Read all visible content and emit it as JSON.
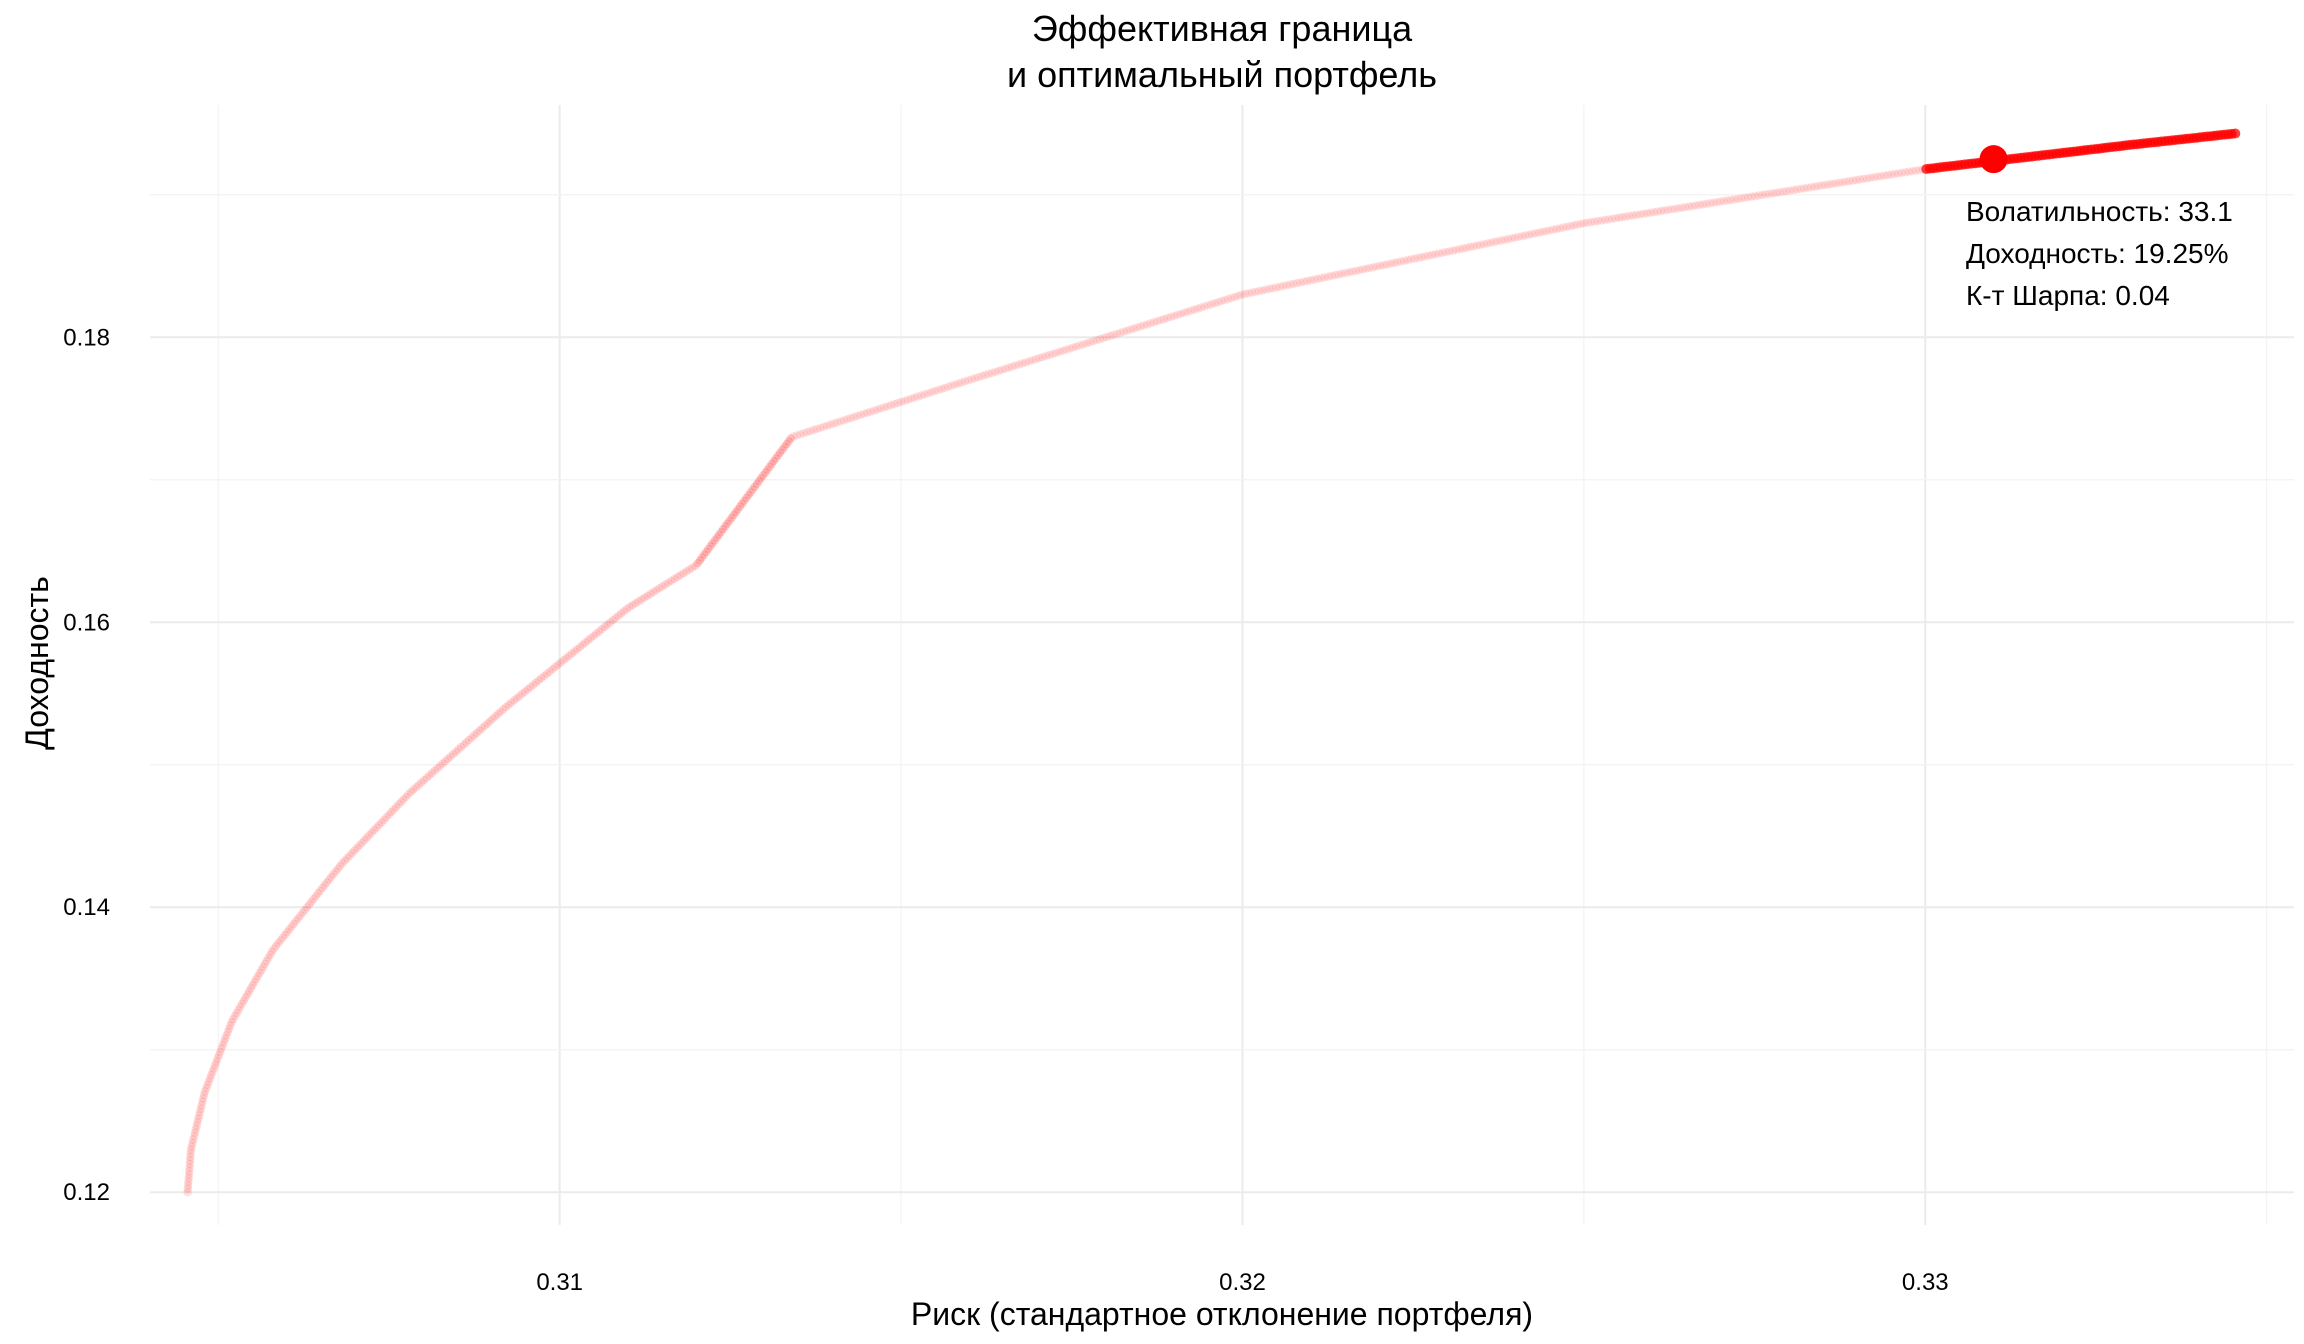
{
  "chart_data": {
    "type": "scatter",
    "title": [
      "Эффективная граница",
      "и  оптимальный портфель"
    ],
    "xlabel": "Риск (стандартное отклонение портфеля)",
    "ylabel": "Доходность",
    "xlim": [
      0.304,
      0.3354
    ],
    "ylim": [
      0.1177,
      0.1963
    ],
    "x_ticks": [
      0.31,
      0.32,
      0.33
    ],
    "x_tick_labels": [
      "0.31",
      "0.32",
      "0.33"
    ],
    "y_ticks": [
      0.12,
      0.14,
      0.16,
      0.18
    ],
    "y_tick_labels": [
      "0.12",
      "0.14",
      "0.16",
      "0.18"
    ],
    "grid": true,
    "point_color": "#ff0000",
    "frontier": [
      {
        "x": 0.30455,
        "y": 0.12
      },
      {
        "x": 0.3046,
        "y": 0.123
      },
      {
        "x": 0.3048,
        "y": 0.127
      },
      {
        "x": 0.3052,
        "y": 0.132
      },
      {
        "x": 0.3058,
        "y": 0.137
      },
      {
        "x": 0.3068,
        "y": 0.143
      },
      {
        "x": 0.3078,
        "y": 0.148
      },
      {
        "x": 0.3092,
        "y": 0.154
      },
      {
        "x": 0.311,
        "y": 0.161
      },
      {
        "x": 0.312,
        "y": 0.164
      },
      {
        "x": 0.3134,
        "y": 0.173
      },
      {
        "x": 0.316,
        "y": 0.177
      },
      {
        "x": 0.32,
        "y": 0.183
      },
      {
        "x": 0.325,
        "y": 0.188
      },
      {
        "x": 0.33,
        "y": 0.1918
      },
      {
        "x": 0.333,
        "y": 0.1935
      },
      {
        "x": 0.33454,
        "y": 0.1943
      }
    ],
    "optimal_point": {
      "x": 0.331,
      "y": 0.1925
    },
    "annotation": [
      "Волатильность: 33.1",
      "Доходность: 19.25%",
      "К-т Шарпа: 0.04"
    ]
  }
}
